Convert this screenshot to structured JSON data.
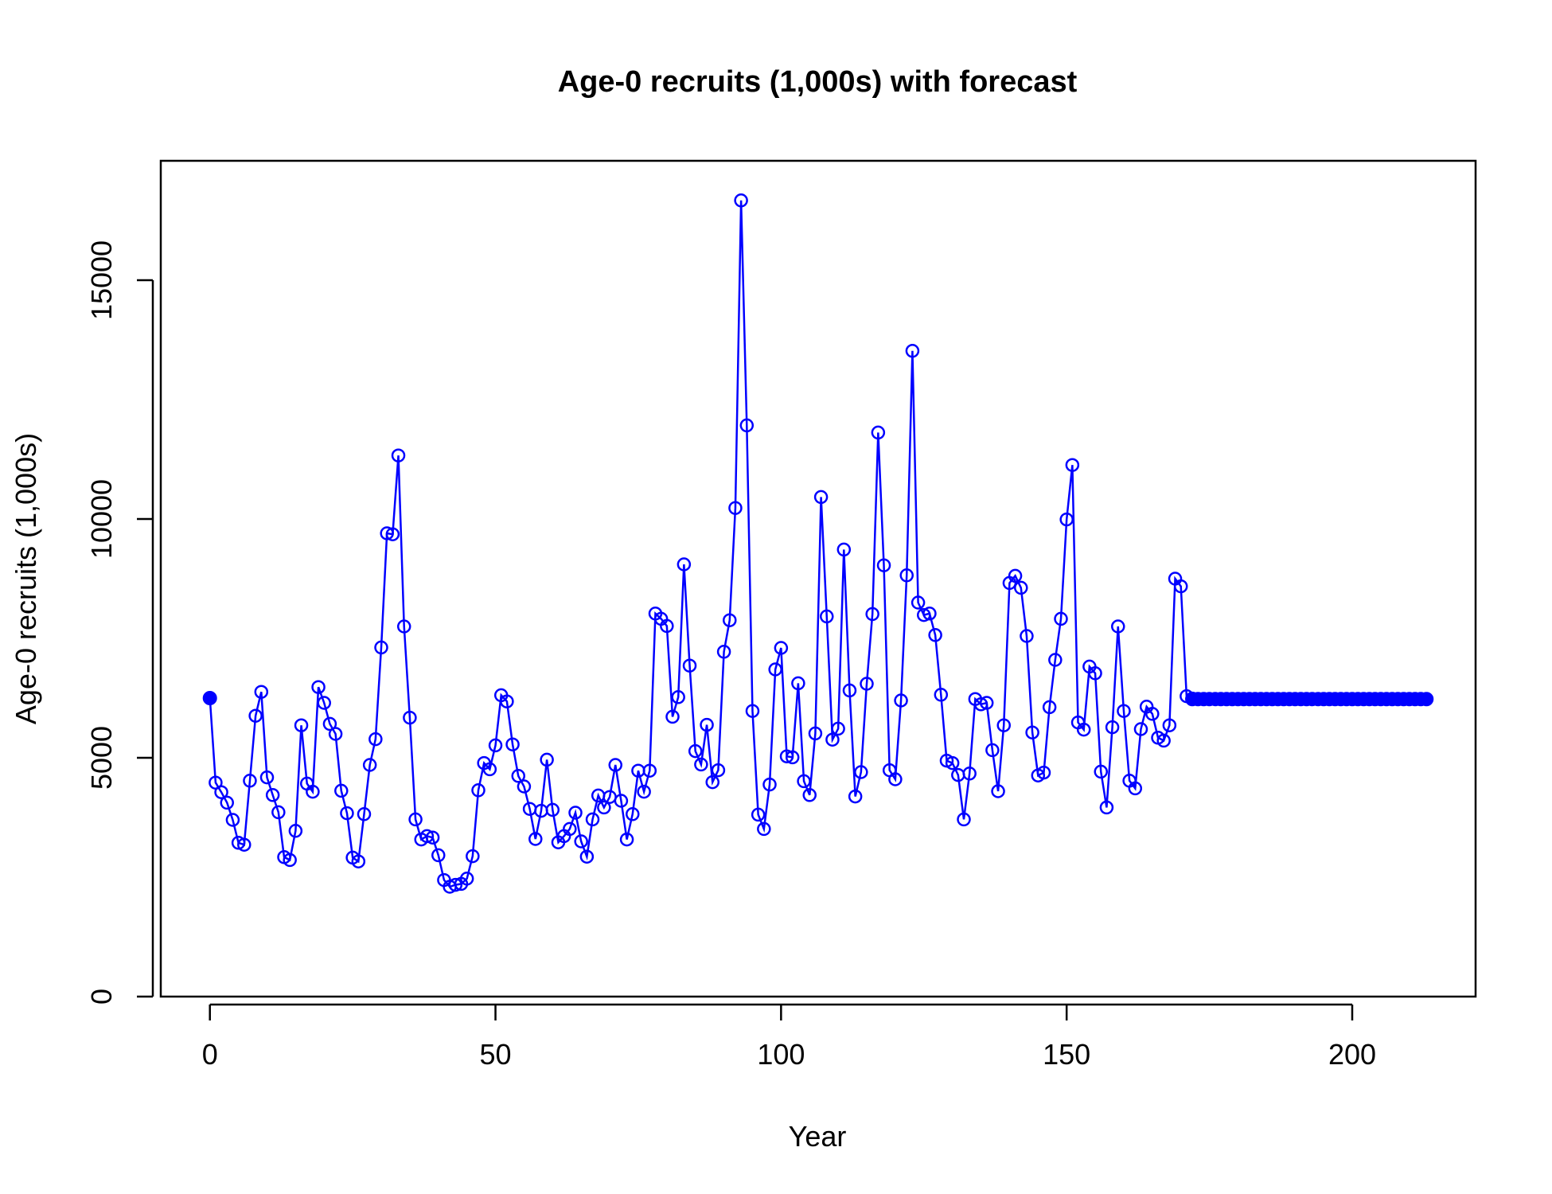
{
  "chart_data": {
    "type": "line",
    "title": "Age-0 recruits (1,000s) with forecast",
    "xlabel": "Year",
    "ylabel": "Age-0 recruits (1,000s)",
    "xlim": [
      -8.6,
      221.6
    ],
    "ylim": [
      0,
      17500
    ],
    "x_ticks": [
      0,
      50,
      100,
      150,
      200
    ],
    "y_ticks": [
      0,
      5000,
      10000,
      15000
    ],
    "grid": false,
    "legend": "none",
    "colors": {
      "series": "#0000ff",
      "axis": "#000000"
    },
    "series": [
      {
        "style": "line-open-circles",
        "x_start": 0,
        "values": [
          6250,
          4480,
          4280,
          4060,
          3700,
          3220,
          3180,
          4520,
          5880,
          6380,
          4590,
          4220,
          3860,
          2920,
          2860,
          3470,
          5680,
          4460,
          4290,
          6480,
          6150,
          5710,
          5500,
          4310,
          3840,
          2910,
          2830,
          3820,
          4850,
          5390,
          7310,
          9700,
          9680,
          11330,
          7750,
          5840,
          3710,
          3290,
          3360,
          3330,
          2960,
          2440,
          2300,
          2340,
          2360,
          2470,
          2940,
          4320,
          4890,
          4760,
          5260,
          6310,
          6180,
          5280,
          4620,
          4400,
          3930,
          3300,
          3890,
          4960,
          3910,
          3230,
          3360,
          3510,
          3850,
          3250,
          2930,
          3710,
          4210,
          3960,
          4180,
          4850,
          4100,
          3290,
          3820,
          4730,
          4290,
          4730,
          8020,
          7910,
          7760,
          5860,
          6270,
          9050,
          6930,
          5140,
          4860,
          5690,
          4490,
          4740,
          7220,
          7880,
          10230,
          16670,
          11960,
          5980,
          3810,
          3510,
          4440,
          6850,
          7300,
          5030,
          5010,
          6560,
          4510,
          4220,
          5510,
          10460,
          7960,
          5380,
          5610,
          9360,
          6410,
          4190,
          4700,
          6550,
          8010,
          11810,
          9030,
          4740,
          4550,
          6200,
          8820,
          13520,
          8250,
          7990,
          8020,
          7570,
          6320,
          4940,
          4890,
          4640,
          3710,
          4670,
          6230,
          6120,
          6150,
          5160,
          4300,
          5680,
          8660,
          8810,
          8560,
          7550,
          5530,
          4630,
          4690,
          6060,
          7050,
          7910,
          9990,
          11130,
          5740,
          5590,
          6910,
          6770,
          4710,
          3960,
          5640,
          7750,
          5980,
          4520,
          4360,
          5600,
          6070,
          5920,
          5420,
          5360,
          5680,
          8750,
          8590,
          6290,
          6240
        ]
      },
      {
        "style": "filled-circles",
        "x_start": 172,
        "values": [
          6230,
          6230,
          6230,
          6230,
          6230,
          6230,
          6230,
          6230,
          6230,
          6230,
          6230,
          6230,
          6230,
          6230,
          6230,
          6230,
          6230,
          6230,
          6230,
          6230,
          6230,
          6230,
          6230,
          6230,
          6230,
          6230,
          6230,
          6230,
          6230,
          6230,
          6230,
          6230,
          6230,
          6230,
          6230,
          6230,
          6230,
          6230,
          6230,
          6230,
          6230,
          6230
        ]
      },
      {
        "style": "filled-circles",
        "x": [
          0
        ],
        "values": [
          6250
        ]
      }
    ]
  }
}
